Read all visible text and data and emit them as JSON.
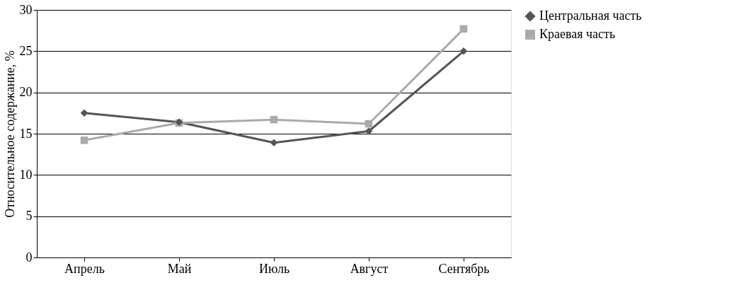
{
  "chart_data": {
    "type": "line",
    "ylabel": "Относительное содержание, %",
    "categories": [
      "Апрель",
      "Май",
      "Июль",
      "Август",
      "Сентябрь"
    ],
    "series": [
      {
        "name": "Центральная часть",
        "color": "#555555",
        "marker": "diamond",
        "values": [
          17.5,
          16.4,
          13.9,
          15.3,
          25.0
        ]
      },
      {
        "name": "Краевая часть",
        "color": "#aaaaaa",
        "marker": "square",
        "values": [
          14.2,
          16.3,
          16.7,
          16.2,
          27.7
        ]
      }
    ],
    "ylim": [
      0,
      30
    ],
    "yticks": [
      0,
      5,
      10,
      15,
      20,
      25,
      30
    ],
    "grid": "y",
    "legend": "top right",
    "line_style": "solid"
  }
}
